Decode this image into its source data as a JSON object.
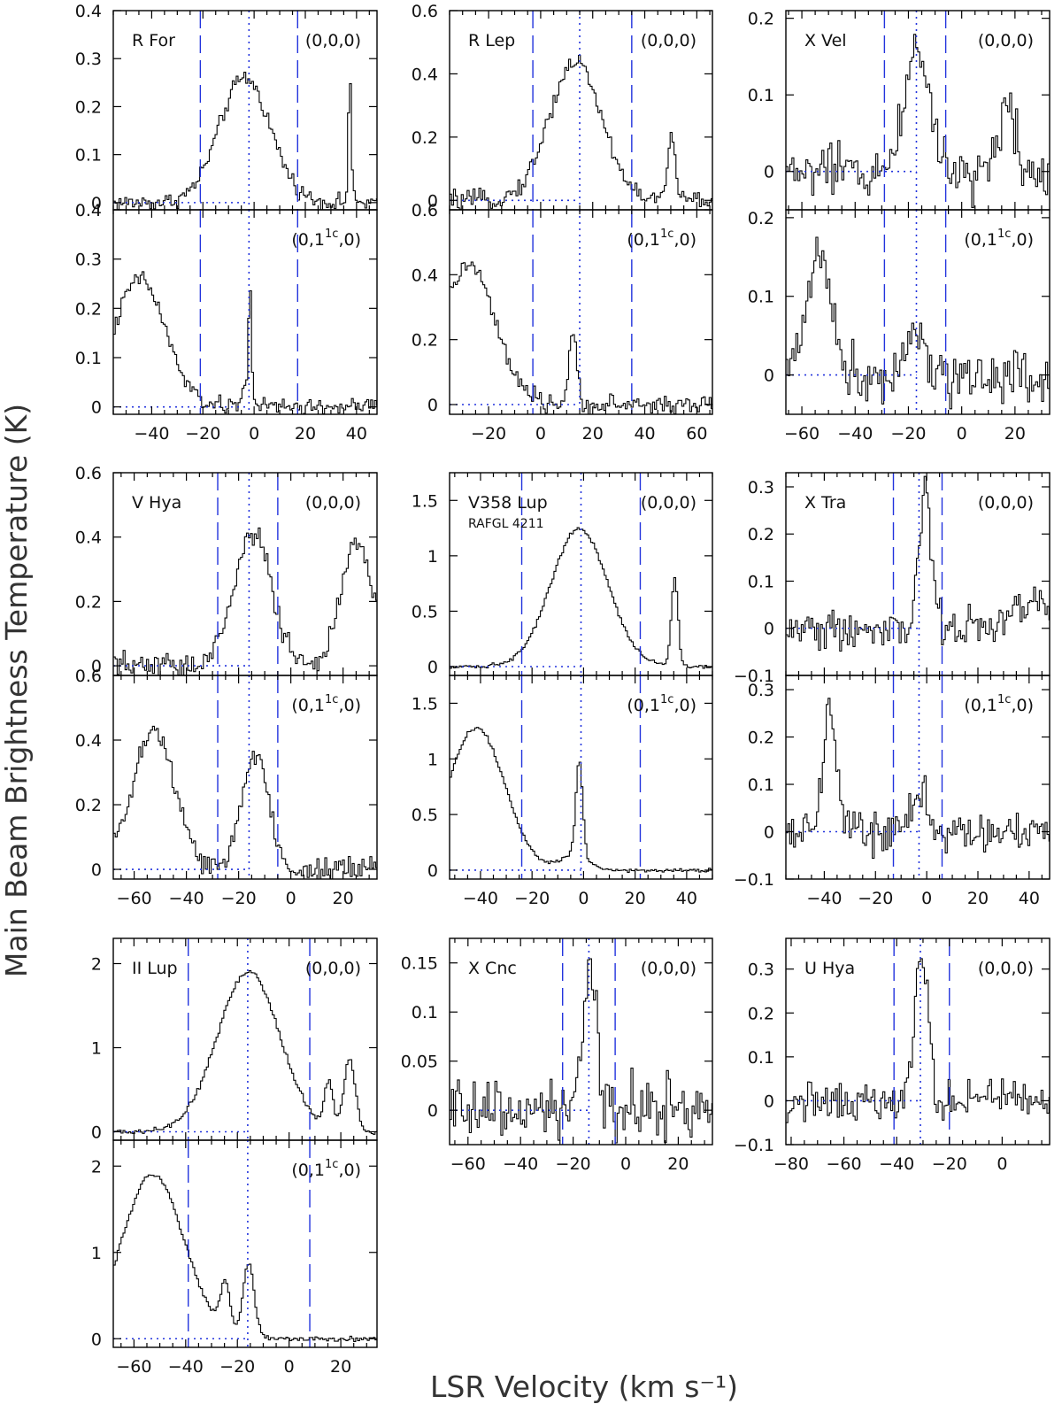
{
  "figure": {
    "ylabel": "Main Beam Brightness Temperature (K)",
    "xlabel": "LSR Velocity (km s⁻¹)"
  },
  "colors": {
    "spectrum": "#000000",
    "guide_lines": "#2233dd"
  },
  "chart_data": [
    {
      "type": "line",
      "star": "R For",
      "subtitle": "",
      "transition": "(0,0,0)",
      "xlim": [
        -55,
        48
      ],
      "ylim": [
        -0.015,
        0.4
      ],
      "xticks": [
        -40,
        -20,
        0,
        20,
        40
      ],
      "yticks": [
        0,
        0.1,
        0.2,
        0.3,
        0.4
      ],
      "vsys": -2,
      "vrange": [
        -21,
        17
      ],
      "peaks": [
        {
          "v": -4,
          "h": 0.26,
          "w": 10
        },
        {
          "v": 37,
          "h": 0.27,
          "w": 0.6
        }
      ],
      "noise": 0.011
    },
    {
      "type": "line",
      "star": "R For",
      "subtitle": "",
      "transition": "(0,1^1c,0)",
      "xlim": [
        -55,
        48
      ],
      "ylim": [
        -0.015,
        0.4
      ],
      "xticks": [
        -40,
        -20,
        0,
        20,
        40
      ],
      "yticks": [
        0,
        0.1,
        0.2,
        0.3,
        0.4
      ],
      "vsys": -2,
      "vrange": [
        -21,
        17
      ],
      "peaks": [
        {
          "v": -45,
          "h": 0.26,
          "w": 10
        },
        {
          "v": -2,
          "h": 0.22,
          "w": 0.6
        },
        {
          "v": -3,
          "h": 0.04,
          "w": 2
        }
      ],
      "noise": 0.011
    },
    {
      "type": "line",
      "star": "R Lep",
      "subtitle": "",
      "transition": "(0,0,0)",
      "xlim": [
        -35,
        66
      ],
      "ylim": [
        -0.03,
        0.6
      ],
      "xticks": [
        -20,
        0,
        20,
        40,
        60
      ],
      "yticks": [
        0,
        0.2,
        0.4,
        0.6
      ],
      "vsys": 15,
      "vrange": [
        -3,
        35
      ],
      "peaks": [
        {
          "v": 13,
          "h": 0.44,
          "w": 10
        },
        {
          "v": 50,
          "h": 0.2,
          "w": 1.5
        }
      ],
      "noise": 0.018
    },
    {
      "type": "line",
      "star": "R Lep",
      "subtitle": "",
      "transition": "(0,1^1c,0)",
      "xlim": [
        -35,
        66
      ],
      "ylim": [
        -0.03,
        0.6
      ],
      "xticks": [
        -20,
        0,
        20,
        40,
        60
      ],
      "yticks": [
        0,
        0.2,
        0.4,
        0.6
      ],
      "vsys": 15,
      "vrange": [
        -3,
        35
      ],
      "peaks": [
        {
          "v": -28,
          "h": 0.43,
          "w": 10
        },
        {
          "v": 12,
          "h": 0.2,
          "w": 1.6
        }
      ],
      "noise": 0.018
    },
    {
      "type": "line",
      "star": "X Vel",
      "subtitle": "",
      "transition": "(0,0,0)",
      "xlim": [
        -66,
        33
      ],
      "ylim": [
        -0.05,
        0.21
      ],
      "xticks": [
        -60,
        -40,
        -20,
        0,
        20
      ],
      "yticks": [
        0,
        0.1,
        0.2
      ],
      "vsys": -17,
      "vrange": [
        -29,
        -6
      ],
      "peaks": [
        {
          "v": -17,
          "h": 0.17,
          "w": 4.5
        },
        {
          "v": 17,
          "h": 0.09,
          "w": 3
        }
      ],
      "noise": 0.022
    },
    {
      "type": "line",
      "star": "X Vel",
      "subtitle": "",
      "transition": "(0,1^1c,0)",
      "xlim": [
        -66,
        33
      ],
      "ylim": [
        -0.05,
        0.21
      ],
      "xticks": [
        -60,
        -40,
        -20,
        0,
        20
      ],
      "yticks": [
        0,
        0.1,
        0.2
      ],
      "vsys": -17,
      "vrange": [
        -29,
        -6
      ],
      "peaks": [
        {
          "v": -54,
          "h": 0.16,
          "w": 4.5
        },
        {
          "v": -19,
          "h": 0.07,
          "w": 3
        }
      ],
      "noise": 0.022
    },
    {
      "type": "line",
      "star": "V Hya",
      "subtitle": "",
      "transition": "(0,0,0)",
      "xlim": [
        -68,
        33
      ],
      "ylim": [
        -0.03,
        0.6
      ],
      "xticks": [
        -60,
        -40,
        -20,
        0,
        20
      ],
      "yticks": [
        0,
        0.2,
        0.4,
        0.6
      ],
      "vsys": -16,
      "vrange": [
        -28,
        -5
      ],
      "peaks": [
        {
          "v": -15,
          "h": 0.42,
          "w": 7
        },
        {
          "v": 25,
          "h": 0.38,
          "w": 6
        }
      ],
      "noise": 0.025
    },
    {
      "type": "line",
      "star": "V Hya",
      "subtitle": "",
      "transition": "(0,1^1c,0)",
      "xlim": [
        -68,
        33
      ],
      "ylim": [
        -0.03,
        0.6
      ],
      "xticks": [
        -60,
        -40,
        -20,
        0,
        20
      ],
      "yticks": [
        0,
        0.2,
        0.4,
        0.6
      ],
      "vsys": -16,
      "vrange": [
        -28,
        -5
      ],
      "peaks": [
        {
          "v": -53,
          "h": 0.43,
          "w": 8
        },
        {
          "v": -14,
          "h": 0.36,
          "w": 5
        }
      ],
      "noise": 0.025
    },
    {
      "type": "line",
      "star": "V358 Lup",
      "subtitle": "RAFGL 4211",
      "transition": "(0,0,0)",
      "xlim": [
        -52,
        50
      ],
      "ylim": [
        -0.08,
        1.75
      ],
      "xticks": [
        -40,
        -20,
        0,
        20,
        40
      ],
      "yticks": [
        0,
        0.5,
        1,
        1.5
      ],
      "vsys": -1,
      "vrange": [
        -24,
        22
      ],
      "peaks": [
        {
          "v": -2,
          "h": 1.25,
          "w": 11
        },
        {
          "v": 35,
          "h": 0.8,
          "w": 1.3
        }
      ],
      "noise": 0.012
    },
    {
      "type": "line",
      "star": "V358 Lup",
      "subtitle": "",
      "transition": "(0,1^1c,0)",
      "xlim": [
        -52,
        50
      ],
      "ylim": [
        -0.08,
        1.75
      ],
      "xticks": [
        -40,
        -20,
        0,
        20,
        40
      ],
      "yticks": [
        0,
        0.5,
        1,
        1.5
      ],
      "vsys": -1,
      "vrange": [
        -24,
        22
      ],
      "peaks": [
        {
          "v": -42,
          "h": 1.28,
          "w": 11
        },
        {
          "v": -2,
          "h": 0.85,
          "w": 1.3
        },
        {
          "v": -4,
          "h": 0.15,
          "w": 5
        }
      ],
      "noise": 0.012
    },
    {
      "type": "line",
      "star": "X Tra",
      "subtitle": "",
      "transition": "(0,0,0)",
      "xlim": [
        -55,
        48
      ],
      "ylim": [
        -0.1,
        0.33
      ],
      "xticks": [
        -40,
        -20,
        0,
        20,
        40
      ],
      "yticks": [
        -0.1,
        0,
        0.1,
        0.2,
        0.3
      ],
      "vsys": -3,
      "vrange": [
        -13,
        6
      ],
      "peaks": [
        {
          "v": -1,
          "h": 0.28,
          "w": 2.5
        },
        {
          "v": 40,
          "h": 0.06,
          "w": 6
        }
      ],
      "noise": 0.028
    },
    {
      "type": "line",
      "star": "X Tra",
      "subtitle": "",
      "transition": "(0,1^1c,0)",
      "xlim": [
        -55,
        48
      ],
      "ylim": [
        -0.1,
        0.33
      ],
      "xticks": [
        -40,
        -20,
        0,
        20,
        40
      ],
      "yticks": [
        -0.1,
        0,
        0.1,
        0.2,
        0.3
      ],
      "vsys": -3,
      "vrange": [
        -13,
        6
      ],
      "peaks": [
        {
          "v": -38,
          "h": 0.27,
          "w": 2.5
        },
        {
          "v": -3,
          "h": 0.08,
          "w": 3
        }
      ],
      "noise": 0.028
    },
    {
      "type": "line",
      "star": "II Lup",
      "subtitle": "",
      "transition": "(0,0,0)",
      "xlim": [
        -68,
        34
      ],
      "ylim": [
        -0.1,
        2.3
      ],
      "xticks": [
        -60,
        -40,
        -20,
        0,
        20
      ],
      "yticks": [
        0,
        1,
        2
      ],
      "vsys": -16,
      "vrange": [
        -39,
        8
      ],
      "peaks": [
        {
          "v": -16,
          "h": 1.9,
          "w": 12
        },
        {
          "v": 15,
          "h": 0.55,
          "w": 1.6
        },
        {
          "v": 23,
          "h": 0.85,
          "w": 2.2
        }
      ],
      "noise": 0.02
    },
    {
      "type": "line",
      "star": "II Lup",
      "subtitle": "",
      "transition": "(0,1^1c,0)",
      "xlim": [
        -68,
        34
      ],
      "ylim": [
        -0.1,
        2.3
      ],
      "xticks": [
        -60,
        -40,
        -20,
        0,
        20
      ],
      "yticks": [
        0,
        1,
        2
      ],
      "vsys": -16,
      "vrange": [
        -39,
        8
      ],
      "peaks": [
        {
          "v": -53,
          "h": 1.9,
          "w": 12
        },
        {
          "v": -25,
          "h": 0.55,
          "w": 1.8
        },
        {
          "v": -16,
          "h": 0.85,
          "w": 2.2
        }
      ],
      "noise": 0.02
    },
    {
      "type": "line",
      "star": "X Cnc",
      "subtitle": "",
      "transition": "(0,0,0)",
      "xlim": [
        -67,
        33
      ],
      "ylim": [
        -0.035,
        0.175
      ],
      "xticks": [
        -60,
        -40,
        -20,
        0,
        20
      ],
      "yticks": [
        0,
        0.05,
        0.1,
        0.15
      ],
      "vsys": -14,
      "vrange": [
        -24,
        -4
      ],
      "peaks": [
        {
          "v": -14,
          "h": 0.13,
          "w": 2.8
        }
      ],
      "noise": 0.02
    },
    {
      "type": "line",
      "star": "U Hya",
      "subtitle": "",
      "transition": "(0,0,0)",
      "xlim": [
        -82,
        18
      ],
      "ylim": [
        -0.1,
        0.37
      ],
      "xticks": [
        -80,
        -60,
        -40,
        0
      ],
      "xticks_extra": [
        -20
      ],
      "yticks": [
        -0.1,
        0,
        0.1,
        0.2,
        0.3
      ],
      "vsys": -31,
      "vrange": [
        -41,
        -20
      ],
      "peaks": [
        {
          "v": -31,
          "h": 0.32,
          "w": 2.6
        }
      ],
      "noise": 0.03
    }
  ]
}
